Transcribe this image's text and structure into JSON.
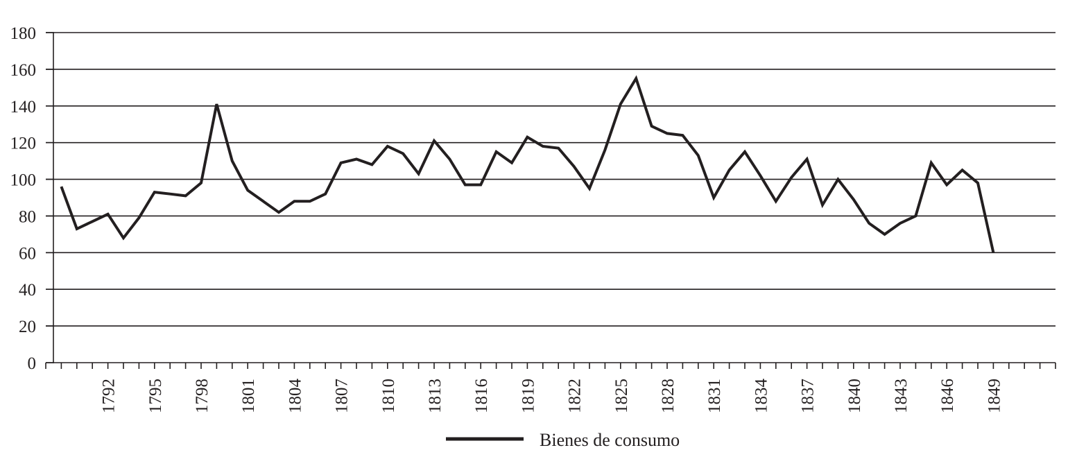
{
  "chart_data": {
    "type": "line",
    "title": "",
    "xlabel": "",
    "ylabel": "",
    "ylim": [
      0,
      180
    ],
    "y_ticks": [
      0,
      20,
      40,
      60,
      80,
      100,
      120,
      140,
      160,
      180
    ],
    "xlim": [
      1788,
      1853
    ],
    "x_tick_labels": [
      "1792",
      "1795",
      "1798",
      "1801",
      "1804",
      "1807",
      "1810",
      "1813",
      "1816",
      "1819",
      "1822",
      "1825",
      "1828",
      "1831",
      "1834",
      "1837",
      "1840",
      "1843",
      "1846",
      "1849"
    ],
    "grid": "horizontal",
    "legend_position": "bottom-center",
    "x": [
      1789,
      1790,
      1791,
      1792,
      1793,
      1794,
      1795,
      1796,
      1797,
      1798,
      1799,
      1800,
      1801,
      1802,
      1803,
      1804,
      1805,
      1806,
      1807,
      1808,
      1809,
      1810,
      1811,
      1812,
      1813,
      1814,
      1815,
      1816,
      1817,
      1818,
      1819,
      1820,
      1821,
      1822,
      1823,
      1824,
      1825,
      1826,
      1827,
      1828,
      1829,
      1830,
      1831,
      1832,
      1833,
      1834,
      1835,
      1836,
      1837,
      1838,
      1839,
      1840,
      1841,
      1842,
      1843,
      1844,
      1845,
      1846,
      1847,
      1848,
      1849
    ],
    "series": [
      {
        "name": "Bienes de consumo",
        "color": "#231f20",
        "values": [
          96,
          73,
          77,
          81,
          68,
          79,
          93,
          92,
          91,
          98,
          141,
          110,
          94,
          88,
          82,
          88,
          88,
          92,
          109,
          111,
          108,
          118,
          114,
          103,
          121,
          111,
          97,
          97,
          115,
          109,
          123,
          118,
          117,
          107,
          95,
          116,
          141,
          155,
          129,
          125,
          124,
          113,
          90,
          105,
          115,
          102,
          88,
          101,
          111,
          86,
          100,
          89,
          76,
          70,
          76,
          80,
          109,
          97,
          105,
          98,
          60
        ]
      }
    ]
  },
  "legend": {
    "label": "Bienes de consumo"
  }
}
